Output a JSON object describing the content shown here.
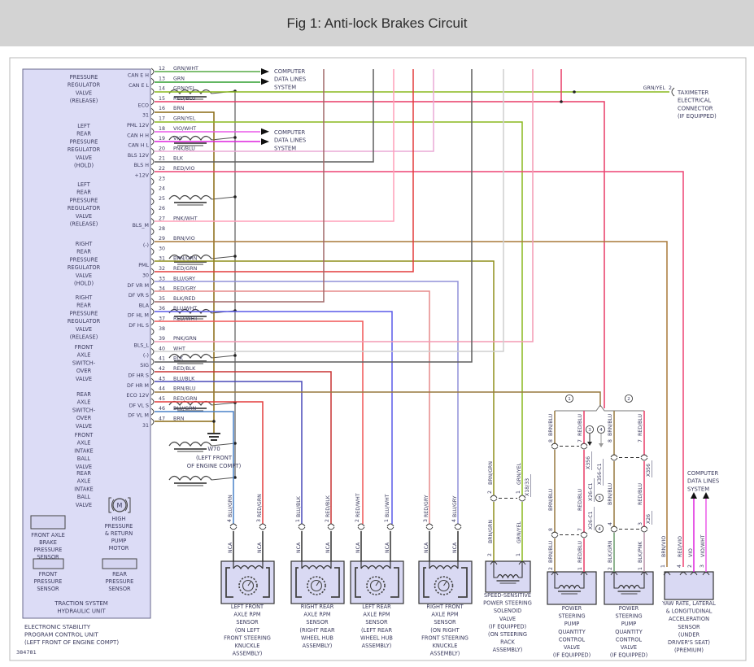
{
  "title": "Fig 1: Anti-lock Brakes Circuit",
  "figure_number": "384781",
  "palette": {
    "ink": "#3b3b5e",
    "box_fill": "#dcdcf6",
    "box_stroke": "#6a6a8e",
    "frame": "#b8b8b8",
    "GRN/WHT": "#55aa44",
    "GRN": "#2f9e2f",
    "GRN/YEL": "#8ab91e",
    "RED/BLU": "#e93a66",
    "BRN": "#8a6a14",
    "VIO/WHT": "#ea5ae8",
    "VIO": "#dd22dd",
    "PNK/BLU": "#eaaad6",
    "BLK": "#5f5f5f",
    "RED/VIO": "#ee4374",
    "PNK/WHT": "#ff9fb8",
    "BRN/VIO": "#a87838",
    "BRN/GRN": "#8f8f1c",
    "RED/GRN": "#e43b3b",
    "BLU/GRY": "#9090d8",
    "RED/GRY": "#e58a8a",
    "BLK/RED": "#a06868",
    "BLU/WHT": "#5a5ae8",
    "RED/WHT": "#f05555",
    "PNK/GRN": "#f49ab4",
    "WHT": "#cfcfcf",
    "RED/BLK": "#c83232",
    "BLU/BLK": "#4848b8",
    "BRN/BLU": "#97793f",
    "BLU/GRN": "#4a82c8",
    "BLK/GRN": "#6a9a6a",
    "BLK/PNK": "#ba92a8"
  },
  "notes": {
    "computer_data_lines": [
      "COMPUTER",
      "DATA LINES",
      "SYSTEM"
    ]
  },
  "taximeter": {
    "wire_color": "GRN/YEL",
    "pin": "2",
    "label": [
      "TAXIMETER",
      "ELECTRICAL",
      "CONNECTOR",
      "(IF EQUIPPED)"
    ]
  },
  "ground": {
    "id": "W70",
    "location": [
      "(LEFT FRONT",
      "OF ENGINE COMPT)"
    ]
  },
  "splice_callouts": [
    "1",
    "2"
  ],
  "control_unit": {
    "label": [
      "ELECTRONIC STABILITY",
      "PROGRAM CONTROL UNIT",
      "(LEFT FRONT OF ENGINE COMPT)"
    ],
    "hydraulic_unit": [
      "TRACTION SYSTEM",
      "HYDRAULIC UNIT"
    ],
    "valves": [
      [
        "PRESSURE",
        "REGULATOR",
        "VALVE",
        "(RELEASE)"
      ],
      [
        "LEFT",
        "REAR",
        "PRESSURE",
        "REGULATOR",
        "VALVE",
        "(HOLD)"
      ],
      [
        "LEFT",
        "REAR",
        "PRESSURE",
        "REGULATOR",
        "VALVE",
        "(RELEASE)"
      ],
      [
        "RIGHT",
        "REAR",
        "PRESSURE",
        "REGULATOR",
        "VALVE",
        "(HOLD)"
      ],
      [
        "RIGHT",
        "REAR",
        "PRESSURE",
        "REGULATOR",
        "VALVE",
        "(RELEASE)"
      ],
      [
        "FRONT",
        "AXLE",
        "SWITCH-",
        "OVER",
        "VALVE"
      ],
      [
        "REAR",
        "AXLE",
        "SWITCH-",
        "OVER",
        "VALVE"
      ],
      [
        "FRONT",
        "AXLE",
        "INTAKE",
        "BALL",
        "VALVE"
      ],
      [
        "REAR",
        "AXLE",
        "INTAKE",
        "BALL",
        "VALVE"
      ]
    ],
    "brake_sensor": [
      "FRONT AXLE",
      "BRAKE",
      "PRESSURE",
      "SENSOR"
    ],
    "pump_motor": [
      "HIGH",
      "PRESSURE",
      "& RETURN",
      "PUMP",
      "MOTOR"
    ],
    "front_sensor": [
      "FRONT",
      "PRESSURE",
      "SENSOR"
    ],
    "rear_sensor": [
      "REAR",
      "PRESSURE",
      "SENSOR"
    ]
  },
  "pins": [
    {
      "num": "12",
      "color": "GRN/WHT",
      "signal": "CAN E H"
    },
    {
      "num": "13",
      "color": "GRN",
      "signal": "CAN E L"
    },
    {
      "num": "14",
      "color": "GRN/YEL",
      "signal": null
    },
    {
      "num": "15",
      "color": "RED/BLU",
      "signal": "ECO"
    },
    {
      "num": "16",
      "color": "BRN",
      "signal": "31"
    },
    {
      "num": "17",
      "color": "GRN/YEL",
      "signal": "PML 12V"
    },
    {
      "num": "18",
      "color": "VIO/WHT",
      "signal": "CAN H H"
    },
    {
      "num": "19",
      "color": "VIO",
      "signal": "CAN H L"
    },
    {
      "num": "20",
      "color": "PNK/BLU",
      "signal": "BLS 12V"
    },
    {
      "num": "21",
      "color": "BLK",
      "signal": "BLS H"
    },
    {
      "num": "22",
      "color": "RED/VIO",
      "signal": "+12V"
    },
    {
      "num": "23",
      "color": null,
      "signal": null
    },
    {
      "num": "24",
      "color": null,
      "signal": null
    },
    {
      "num": "25",
      "color": null,
      "signal": null
    },
    {
      "num": "26",
      "color": null,
      "signal": null
    },
    {
      "num": "27",
      "color": "PNK/WHT",
      "signal": "BLS_M"
    },
    {
      "num": "28",
      "color": null,
      "signal": null
    },
    {
      "num": "29",
      "color": "BRN/VIO",
      "signal": "(-)"
    },
    {
      "num": "30",
      "color": null,
      "signal": null
    },
    {
      "num": "31",
      "color": "BRN/GRN",
      "signal": "PML"
    },
    {
      "num": "32",
      "color": "RED/GRN",
      "signal": "30"
    },
    {
      "num": "33",
      "color": "BLU/GRY",
      "signal": "DF VR M"
    },
    {
      "num": "34",
      "color": "RED/GRY",
      "signal": "DF VR S"
    },
    {
      "num": "35",
      "color": "BLK/RED",
      "signal": "BLA"
    },
    {
      "num": "36",
      "color": "BLU/WHT",
      "signal": "DF HL M"
    },
    {
      "num": "37",
      "color": "RED/WHT",
      "signal": "DF HL S"
    },
    {
      "num": "38",
      "color": null,
      "signal": null
    },
    {
      "num": "39",
      "color": "PNK/GRN",
      "signal": "BLS_L"
    },
    {
      "num": "40",
      "color": "WHT",
      "signal": "(-)"
    },
    {
      "num": "41",
      "color": "BLK",
      "signal": "SIG"
    },
    {
      "num": "42",
      "color": "RED/BLK",
      "signal": "DF HR S"
    },
    {
      "num": "43",
      "color": "BLU/BLK",
      "signal": "DF HR M"
    },
    {
      "num": "44",
      "color": "BRN/BLU",
      "signal": "ECO 12V"
    },
    {
      "num": "45",
      "color": "RED/GRN",
      "signal": "DF VL S"
    },
    {
      "num": "46",
      "color": "BLU/GRN",
      "signal": "DF VL M"
    },
    {
      "num": "47",
      "color": "BRN",
      "signal": "31"
    }
  ],
  "components": [
    {
      "id": "lf-rpm",
      "label": [
        "LEFT FRONT",
        "AXLE RPM",
        "SENSOR",
        "(ON LEFT",
        "FRONT STEERING",
        "KNUCKLE",
        "ASSEMBLY)"
      ],
      "wires": [
        {
          "color": "BLU/GRN",
          "pin": "4",
          "lower": "NCA"
        },
        {
          "color": "RED/GRN",
          "pin": "3",
          "lower": "NCA"
        }
      ]
    },
    {
      "id": "rr-rpm",
      "label": [
        "RIGHT REAR",
        "AXLE RPM",
        "SENSOR",
        "(RIGHT REAR",
        "WHEEL HUB",
        "ASSEMBLY)"
      ],
      "wires": [
        {
          "color": "BLU/BLK",
          "pin": "1",
          "lower": "NCA"
        },
        {
          "color": "RED/BLK",
          "pin": "2",
          "lower": "NCA"
        }
      ]
    },
    {
      "id": "lr-rpm",
      "label": [
        "LEFT REAR",
        "AXLE RPM",
        "SENSOR",
        "(LEFT REAR",
        "WHEEL HUB",
        "ASSEMBLY)"
      ],
      "wires": [
        {
          "color": "RED/WHT",
          "pin": "2",
          "lower": "NCA"
        },
        {
          "color": "BLU/WHT",
          "pin": "1",
          "lower": "NCA"
        }
      ]
    },
    {
      "id": "rf-rpm",
      "label": [
        "RIGHT FRONT",
        "AXLE RPM",
        "SENSOR",
        "(ON RIGHT",
        "FRONT STEERING",
        "KNUCKLE",
        "ASSEMBLY)"
      ],
      "wires": [
        {
          "color": "RED/GRY",
          "pin": "3",
          "lower": "NCA"
        },
        {
          "color": "BLU/GRY",
          "pin": "4",
          "lower": "NCA"
        }
      ]
    },
    {
      "id": "ss-valve",
      "label": [
        "SPEED-SENSITIVE",
        "POWER STEERING",
        "SOLENOID",
        "VALVE",
        "(IF EQUIPPED)",
        "(ON STEERING",
        "RACK",
        "ASSEMBLY)"
      ],
      "connector": "X18/33",
      "upper_pins": [
        "2",
        "1"
      ],
      "wires": [
        {
          "color": "BRN/GRN",
          "pin": "2"
        },
        {
          "color": "GRN/YEL",
          "pin": "1"
        }
      ]
    },
    {
      "id": "ps-valve-1",
      "label": [
        "POWER",
        "STEERING",
        "PUMP",
        "QUANTITY",
        "CONTROL",
        "VALVE",
        "(IF EQUIPPED)"
      ],
      "upper_colors": [
        "BRN/BLU",
        "RED/BLU"
      ],
      "upper_pins": [
        "8",
        "7"
      ],
      "upper_connector_variants": [
        {
          "callout": "3",
          "name": "X356"
        },
        {
          "callout": "4",
          "name": "X356-C1"
        }
      ],
      "mid_colors": [
        "BRN/BLU",
        "RED/BLU"
      ],
      "mid_pins": [
        "8",
        "7"
      ],
      "mid_connector": {
        "callout": "3",
        "name": "X26-C1"
      },
      "lower_pins": [
        "10",
        "9"
      ],
      "lower_connector": {
        "callout": "4",
        "name": "X26-C1"
      },
      "wires": [
        {
          "color": "BRN/BLU",
          "pin": "2"
        },
        {
          "color": "RED/BLU",
          "pin": "1"
        }
      ]
    },
    {
      "id": "ps-valve-2",
      "label": [
        "POWER",
        "STEERING",
        "PUMP",
        "QUANTITY",
        "CONTROL",
        "VALVE",
        "(IF EQUIPPED)"
      ],
      "upper_colors": [
        "BRN/BLU",
        "RED/BLU"
      ],
      "upper_pins": [
        "8",
        "7"
      ],
      "upper_connector": "X356",
      "mid_colors": [
        "BRN/BLU",
        "RED/BLU"
      ],
      "mid_pins": [
        "4",
        "3"
      ],
      "lower_connector": "X26",
      "wires": [
        {
          "color": "BLK/GRN",
          "pin": "2"
        },
        {
          "color": "BLK/PNK",
          "pin": "1"
        }
      ]
    },
    {
      "id": "yaw-sensor",
      "label": [
        "YAW RATE, LATERAL",
        "& LONGITUDINAL",
        "ACCELERATION",
        "SENSOR",
        "(UNDER",
        "DRIVER'S SEAT)",
        "(PREMIUM)"
      ],
      "wires": [
        {
          "color": "BRN/VIO",
          "pin": "1"
        },
        {
          "color": "RED/VIO",
          "pin": "4"
        },
        {
          "color": "VIO",
          "pin": "2"
        },
        {
          "color": "VIO/WHT",
          "pin": "3"
        }
      ]
    }
  ]
}
